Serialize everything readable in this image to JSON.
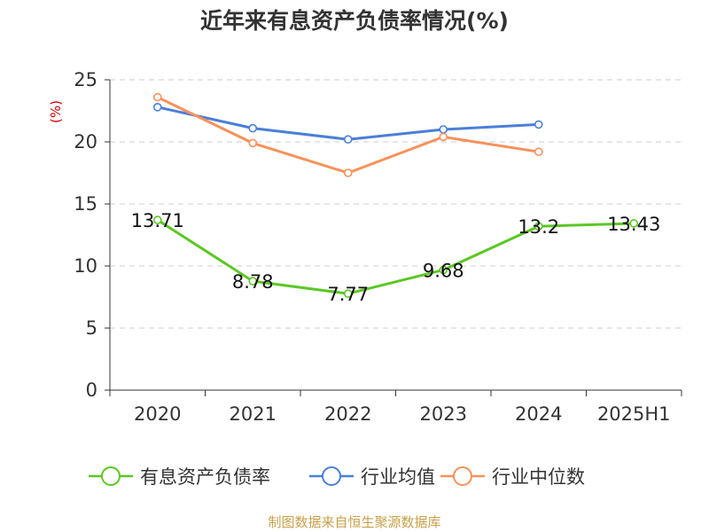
{
  "title": "近年来有息资产负债率情况(%)",
  "source_note": "制图数据来自恒生聚源数据库",
  "colors": {
    "series_green": "#5cc724",
    "series_blue": "#4a7fd8",
    "series_orange": "#f7915a",
    "ylabel": "#cc0000",
    "grid": "#cccccc",
    "axis": "#333333"
  },
  "chart_data": {
    "type": "line",
    "title": "近年来有息资产负债率情况(%)",
    "xlabel": "",
    "ylabel": "(%)",
    "ylim": [
      0,
      25
    ],
    "yticks": [
      0,
      5,
      10,
      15,
      20,
      25
    ],
    "grid": "horizontal-dashed",
    "legend_position": "bottom",
    "categories": [
      "2020",
      "2021",
      "2022",
      "2023",
      "2024",
      "2025H1"
    ],
    "series": [
      {
        "name": "有息资产负债率",
        "color": "#5cc724",
        "values": [
          13.71,
          8.78,
          7.77,
          9.68,
          13.2,
          13.43
        ],
        "labels": [
          "13.71",
          "8.78",
          "7.77",
          "9.68",
          "13.2",
          "13.43"
        ],
        "show_labels": true
      },
      {
        "name": "行业均值",
        "color": "#4a7fd8",
        "values": [
          22.8,
          21.1,
          20.2,
          21.0,
          21.4,
          null
        ],
        "show_labels": false
      },
      {
        "name": "行业中位数",
        "color": "#f7915a",
        "values": [
          23.6,
          19.9,
          17.5,
          20.4,
          19.2,
          null
        ],
        "show_labels": false
      }
    ]
  }
}
